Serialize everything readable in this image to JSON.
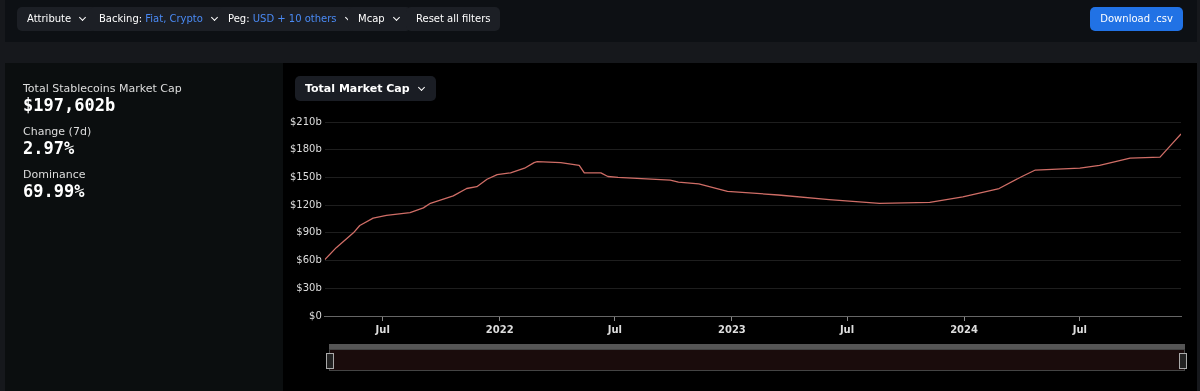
{
  "chart_data": [
    {
      "type": "other",
      "annotations": [
        "Attribute",
        "Backing:",
        "Fiat, Crypto",
        "Peg:",
        "USD + 10 others",
        "Mcap",
        "Reset all filters",
        "Download .csv"
      ]
    },
    {
      "type": "other",
      "annotations": [
        "Total Stablecoins Market Cap",
        "$197,602b",
        "Change (7d)",
        "2.97%",
        "Dominance",
        "69.99%"
      ]
    },
    {
      "type": "line",
      "title": "Total Market Cap",
      "grid": "y",
      "legend": false,
      "marker": "none",
      "xlim": [
        "2021-04-01",
        "2024-12-07"
      ],
      "xticks": [
        {
          "value": "2021-07-01",
          "label": "Jul"
        },
        {
          "value": "2022-01-01",
          "label": "2022"
        },
        {
          "value": "2022-07-01",
          "label": "Jul"
        },
        {
          "value": "2023-01-01",
          "label": "2023"
        },
        {
          "value": "2023-07-01",
          "label": "Jul"
        },
        {
          "value": "2024-01-01",
          "label": "2024"
        },
        {
          "value": "2024-07-01",
          "label": "Jul"
        }
      ],
      "ylim": [
        0,
        210
      ],
      "yticks": [
        {
          "value": 0,
          "label": "$0"
        },
        {
          "value": 30,
          "label": "$30b"
        },
        {
          "value": 60,
          "label": "$60b"
        },
        {
          "value": 90,
          "label": "$90b"
        },
        {
          "value": 120,
          "label": "$120b"
        },
        {
          "value": 150,
          "label": "$150b"
        },
        {
          "value": 180,
          "label": "$180b"
        },
        {
          "value": 210,
          "label": "$210b"
        }
      ],
      "series": [
        {
          "color": "#cf6d66",
          "x": [
            "2021-04-01",
            "2021-04-19",
            "2021-05-16",
            "2021-05-26",
            "2021-06-16",
            "2021-07-07",
            "2021-08-13",
            "2021-09-03",
            "2021-09-14",
            "2021-10-20",
            "2021-11-10",
            "2021-11-26",
            "2021-12-12",
            "2021-12-28",
            "2022-01-18",
            "2022-02-09",
            "2022-02-24",
            "2022-03-01",
            "2022-04-07",
            "2022-05-06",
            "2022-05-14",
            "2022-06-09",
            "2022-06-20",
            "2022-07-06",
            "2022-09-26",
            "2022-10-09",
            "2022-11-10",
            "2022-12-25",
            "2023-03-15",
            "2023-06-03",
            "2023-08-21",
            "2023-11-08",
            "2023-12-30",
            "2024-02-25",
            "2024-04-01",
            "2024-04-22",
            "2024-07-01",
            "2024-08-01",
            "2024-09-18",
            "2024-11-04",
            "2024-11-25",
            "2024-12-07"
          ],
          "values": [
            61,
            74,
            90,
            98,
            106,
            109,
            112,
            117,
            122,
            130,
            138,
            140,
            148,
            153,
            155,
            160,
            166,
            167,
            166,
            163,
            155,
            155,
            151,
            150,
            147,
            145,
            143,
            135,
            131,
            126,
            122,
            123,
            129,
            138,
            151,
            158,
            160,
            163,
            171,
            172,
            188,
            197
          ]
        }
      ]
    }
  ]
}
